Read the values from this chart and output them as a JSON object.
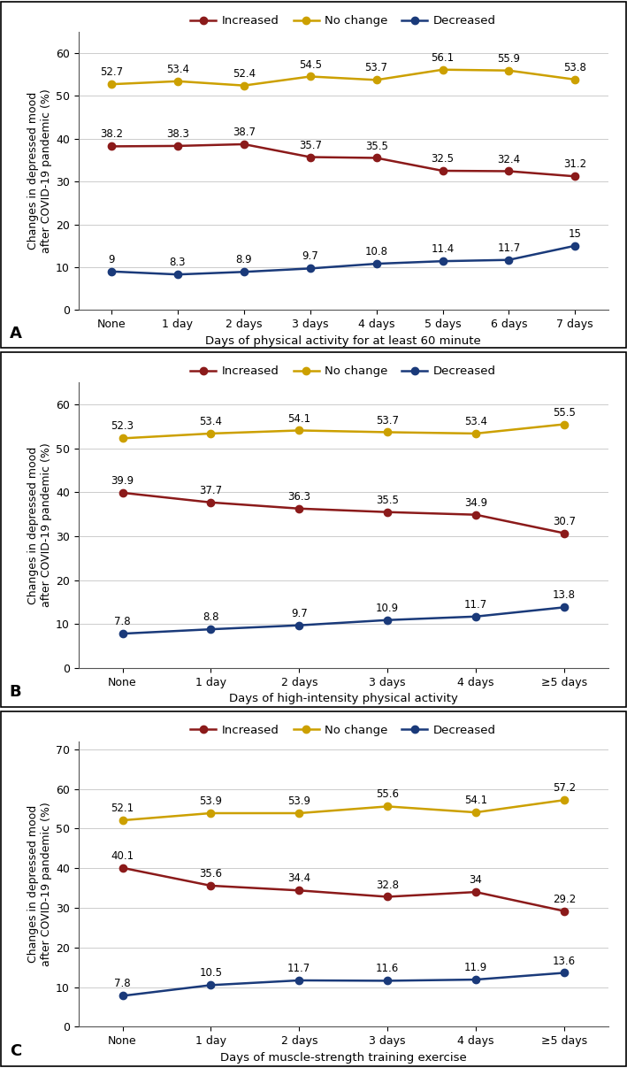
{
  "panel_A": {
    "x_labels": [
      "None",
      "1 day",
      "2 days",
      "3 days",
      "4 days",
      "5 days",
      "6 days",
      "7 days"
    ],
    "increased": [
      38.2,
      38.3,
      38.7,
      35.7,
      35.5,
      32.5,
      32.4,
      31.2
    ],
    "no_change": [
      52.7,
      53.4,
      52.4,
      54.5,
      53.7,
      56.1,
      55.9,
      53.8
    ],
    "decreased": [
      9.0,
      8.3,
      8.9,
      9.7,
      10.8,
      11.4,
      11.7,
      15.0
    ],
    "xlabel": "Days of physical activity for at least 60 minute",
    "ylim": [
      0,
      65
    ],
    "yticks": [
      0,
      10,
      20,
      30,
      40,
      50,
      60
    ],
    "panel_label": "A"
  },
  "panel_B": {
    "x_labels": [
      "None",
      "1 day",
      "2 days",
      "3 days",
      "4 days",
      "≥5 days"
    ],
    "increased": [
      39.9,
      37.7,
      36.3,
      35.5,
      34.9,
      30.7
    ],
    "no_change": [
      52.3,
      53.4,
      54.1,
      53.7,
      53.4,
      55.5
    ],
    "decreased": [
      7.8,
      8.8,
      9.7,
      10.9,
      11.7,
      13.8
    ],
    "xlabel": "Days of high-intensity physical activity",
    "ylim": [
      0,
      65
    ],
    "yticks": [
      0,
      10,
      20,
      30,
      40,
      50,
      60
    ],
    "panel_label": "B"
  },
  "panel_C": {
    "x_labels": [
      "None",
      "1 day",
      "2 days",
      "3 days",
      "4 days",
      "≥5 days"
    ],
    "increased": [
      40.1,
      35.6,
      34.4,
      32.8,
      34.0,
      29.2
    ],
    "no_change": [
      52.1,
      53.9,
      53.9,
      55.6,
      54.1,
      57.2
    ],
    "decreased": [
      7.8,
      10.5,
      11.7,
      11.6,
      11.9,
      13.6
    ],
    "xlabel": "Days of muscle-strength training exercise",
    "ylim": [
      0,
      72
    ],
    "yticks": [
      0,
      10,
      20,
      30,
      40,
      50,
      60,
      70
    ],
    "panel_label": "C"
  },
  "color_increased": "#8B1A1A",
  "color_no_change": "#CCA000",
  "color_decreased": "#1A3A7A",
  "legend_labels": [
    "Increased",
    "No change",
    "Decreased"
  ],
  "ylabel": "Changes in depressed mood\nafter COVID-19 pandemic (%)",
  "marker": "o",
  "linewidth": 1.8,
  "markersize": 6,
  "annotation_fontsize": 8.5,
  "label_fontsize": 9.5,
  "tick_fontsize": 9,
  "legend_fontsize": 9.5,
  "panel_label_fontsize": 13
}
